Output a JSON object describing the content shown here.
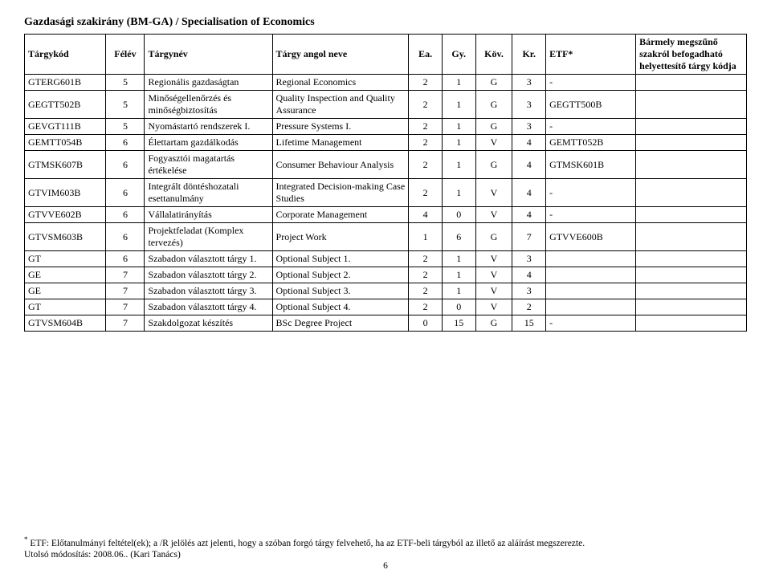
{
  "title": "Gazdasági szakirány (BM-GA) / Specialisation of Economics",
  "headers": {
    "code": "Tárgykód",
    "sem": "Félév",
    "hu": "Tárgynév",
    "en": "Tárgy angol neve",
    "ea": "Ea.",
    "gy": "Gy.",
    "kov": "Köv.",
    "kr": "Kr.",
    "etf": "ETF*",
    "ext": "Bármely megszűnő szakról befogadható helyettesítő tárgy kódja"
  },
  "rows": [
    {
      "code": "GTERG601B",
      "sem": "5",
      "hu": "Regionális gazdaságtan",
      "en": "Regional Economics",
      "ea": "2",
      "gy": "1",
      "kov": "G",
      "kr": "3",
      "etf": "-",
      "ext": ""
    },
    {
      "code": "GEGTT502B",
      "sem": "5",
      "hu": "Minőségellenőrzés és minőségbiztosítás",
      "en": "Quality Inspection and Quality Assurance",
      "ea": "2",
      "gy": "1",
      "kov": "G",
      "kr": "3",
      "etf": "GEGTT500B",
      "ext": ""
    },
    {
      "code": "GEVGT111B",
      "sem": "5",
      "hu": "Nyomástartó rendszerek I.",
      "en": "Pressure Systems I.",
      "ea": "2",
      "gy": "1",
      "kov": "G",
      "kr": "3",
      "etf": "-",
      "ext": ""
    },
    {
      "code": "GEMTT054B",
      "sem": "6",
      "hu": "Élettartam gazdálkodás",
      "en": "Lifetime Management",
      "ea": "2",
      "gy": "1",
      "kov": "V",
      "kr": "4",
      "etf": "GEMTT052B",
      "ext": ""
    },
    {
      "code": "GTMSK607B",
      "sem": "6",
      "hu": "Fogyasztói magatartás értékelése",
      "en": "Consumer Behaviour Analysis",
      "ea": "2",
      "gy": "1",
      "kov": "G",
      "kr": "4",
      "etf": "GTMSK601B",
      "ext": ""
    },
    {
      "code": "GTVIM603B",
      "sem": "6",
      "hu": "Integrált döntéshozatali esettanulmány",
      "en": "Integrated Decision-making Case Studies",
      "ea": "2",
      "gy": "1",
      "kov": "V",
      "kr": "4",
      "etf": "-",
      "ext": ""
    },
    {
      "code": "GTVVE602B",
      "sem": "6",
      "hu": "Vállalatirányítás",
      "en": "Corporate Management",
      "ea": "4",
      "gy": "0",
      "kov": "V",
      "kr": "4",
      "etf": "-",
      "ext": ""
    },
    {
      "code": "GTVSM603B",
      "sem": "6",
      "hu": "Projektfeladat (Komplex tervezés)",
      "en": "Project Work",
      "ea": "1",
      "gy": "6",
      "kov": "G",
      "kr": "7",
      "etf": "GTVVE600B",
      "ext": ""
    },
    {
      "code": "GT",
      "sem": "6",
      "hu": "Szabadon választott tárgy 1.",
      "en": "Optional Subject 1.",
      "ea": "2",
      "gy": "1",
      "kov": "V",
      "kr": "3",
      "etf": "",
      "ext": ""
    },
    {
      "code": "GE",
      "sem": "7",
      "hu": "Szabadon választott tárgy 2.",
      "en": "Optional Subject 2.",
      "ea": "2",
      "gy": "1",
      "kov": "V",
      "kr": "4",
      "etf": "",
      "ext": ""
    },
    {
      "code": "GE",
      "sem": "7",
      "hu": "Szabadon választott tárgy 3.",
      "en": "Optional Subject 3.",
      "ea": "2",
      "gy": "1",
      "kov": "V",
      "kr": "3",
      "etf": "",
      "ext": ""
    },
    {
      "code": "GT",
      "sem": "7",
      "hu": "Szabadon választott tárgy 4.",
      "en": "Optional Subject 4.",
      "ea": "2",
      "gy": "0",
      "kov": "V",
      "kr": "2",
      "etf": "",
      "ext": ""
    },
    {
      "code": "GTVSM604B",
      "sem": "7",
      "hu": "Szakdolgozat készítés",
      "en": "BSc Degree Project",
      "ea": "0",
      "gy": "15",
      "kov": "G",
      "kr": "15",
      "etf": "-",
      "ext": ""
    }
  ],
  "footer": {
    "note_prefix": "*",
    "note": " ETF: Előtanulmányi feltétel(ek); a /R jelölés azt jelenti, hogy a szóban forgó tárgy felvehető, ha az ETF-beli tárgyból az illető az aláírást megszerezte.",
    "mod": "Utolsó módosítás: 2008.06.. (Kari Tanács)",
    "page": "6"
  }
}
